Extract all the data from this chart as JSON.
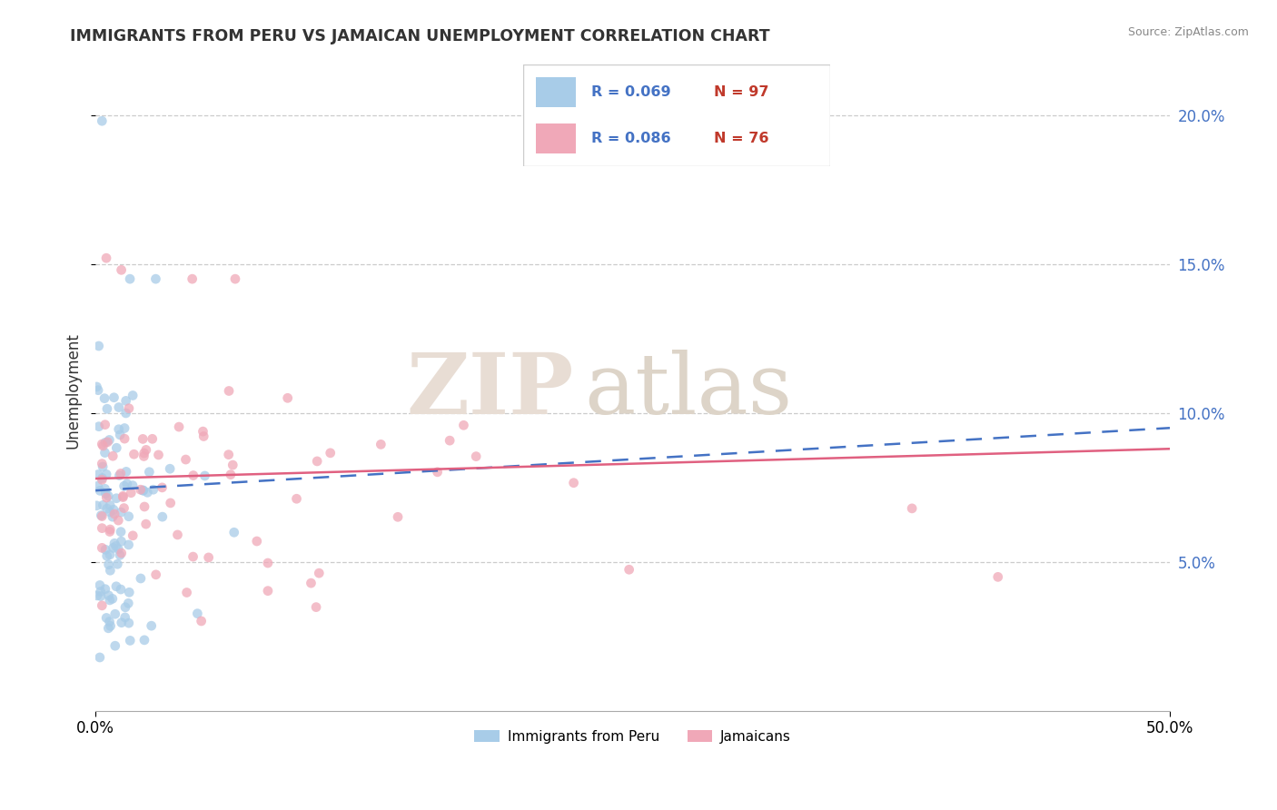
{
  "title": "IMMIGRANTS FROM PERU VS JAMAICAN UNEMPLOYMENT CORRELATION CHART",
  "source": "Source: ZipAtlas.com",
  "ylabel": "Unemployment",
  "xlim": [
    0.0,
    0.5
  ],
  "ylim": [
    0.0,
    0.215
  ],
  "yticks": [
    0.05,
    0.1,
    0.15,
    0.2
  ],
  "ytick_labels": [
    "5.0%",
    "10.0%",
    "15.0%",
    "20.0%"
  ],
  "legend_r1": "R = 0.069",
  "legend_n1": "N = 97",
  "legend_r2": "R = 0.086",
  "legend_n2": "N = 76",
  "color_peru": "#a8cce8",
  "color_jamaica": "#f0a8b8",
  "color_line_peru": "#4472c4",
  "color_line_jamaica": "#e06080",
  "watermark_zip": "ZIP",
  "watermark_atlas": "atlas",
  "title_color": "#333333",
  "ytick_color": "#4472c4",
  "source_color": "#888888",
  "legend_r_color": "#4472c4",
  "legend_n_color": "#c0392b"
}
